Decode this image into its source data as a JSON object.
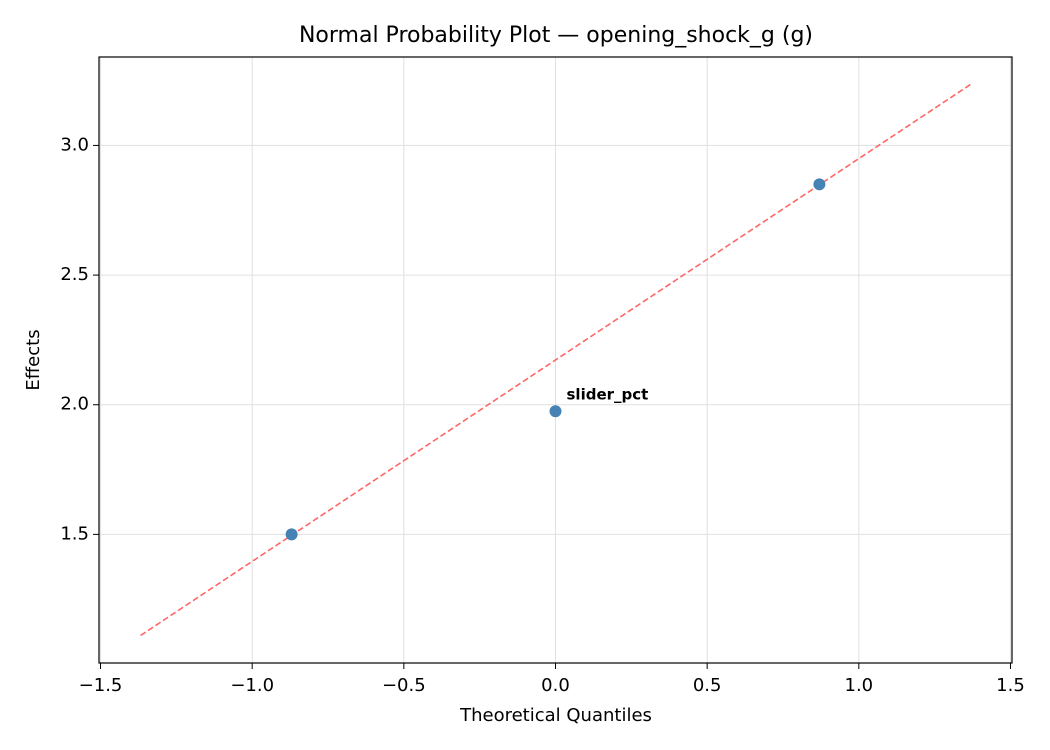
{
  "chart_data": {
    "type": "scatter",
    "title": "Normal Probability Plot — opening_shock_g (g)",
    "xlabel": "Theoretical Quantiles",
    "ylabel": "Effects",
    "points": {
      "x": [
        -0.87,
        0,
        0.87
      ],
      "y": [
        1.5,
        1.975,
        2.85
      ],
      "color": "#4682b4"
    },
    "reference_line": {
      "x": [
        -1.368,
        1.368
      ],
      "y": [
        1.11,
        3.235
      ],
      "color": "#ff6666",
      "dashed": true
    },
    "annotations": [
      {
        "text": "slider_pct",
        "x": 0,
        "y": 1.975,
        "color": "#ff0000"
      }
    ],
    "xlim": [
      -1.505,
      1.505
    ],
    "ylim": [
      1.004,
      3.341
    ],
    "xticks": [
      {
        "value": -1.5,
        "label": "−1.5"
      },
      {
        "value": -1,
        "label": "−1.0"
      },
      {
        "value": -0.5,
        "label": "−0.5"
      },
      {
        "value": 0,
        "label": "0.0"
      },
      0.5,
      {
        "value": 1,
        "label": "1.0"
      },
      1.5
    ],
    "yticks": [
      1.5,
      {
        "value": 2,
        "label": "2.0"
      },
      2.5,
      {
        "value": 3,
        "label": "3.0"
      }
    ],
    "grid": true
  }
}
